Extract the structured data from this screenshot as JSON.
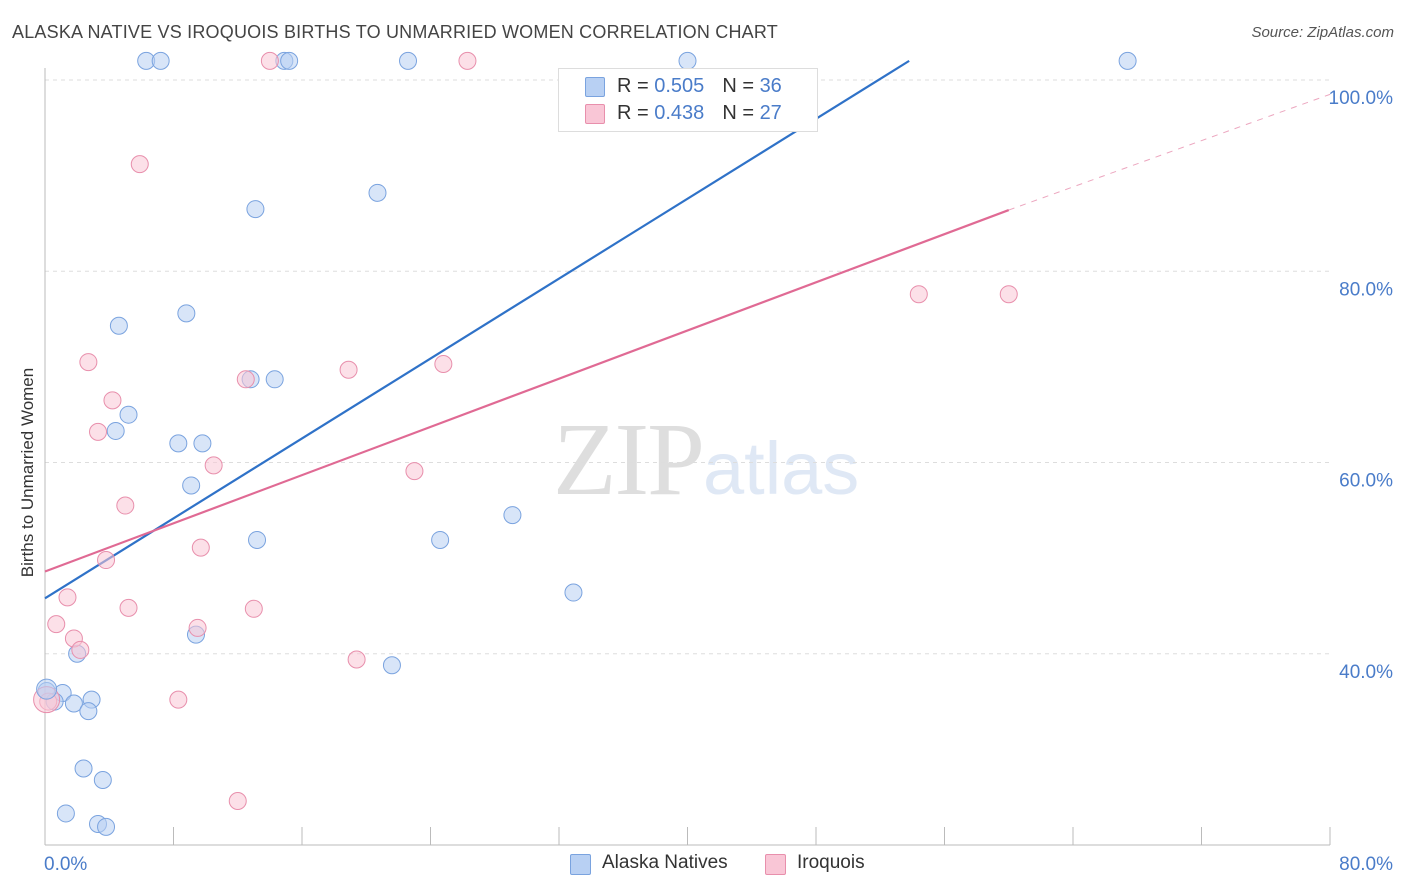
{
  "title": "ALASKA NATIVE VS IROQUOIS BIRTHS TO UNMARRIED WOMEN CORRELATION CHART",
  "source": "Source: ZipAtlas.com",
  "watermark": {
    "zip": "ZIP",
    "atlas": "atlas"
  },
  "legend_top": [
    {
      "r_label": "R = ",
      "r_value": "0.505",
      "n_label": "N = ",
      "n_value": "36",
      "color": "#b8d0f3",
      "border": "#7aa3df"
    },
    {
      "r_label": "R = ",
      "r_value": "0.438",
      "n_label": "N = ",
      "n_value": "27",
      "color": "#f9c6d6",
      "border": "#e88fac"
    }
  ],
  "legend_bottom": [
    {
      "label": "Alaska Natives",
      "color": "#b8d0f3",
      "border": "#7aa3df"
    },
    {
      "label": "Iroquois",
      "color": "#f9c6d6",
      "border": "#e88fac"
    }
  ],
  "chart_data": {
    "type": "scatter",
    "title": "ALASKA NATIVE VS IROQUOIS BIRTHS TO UNMARRIED WOMEN CORRELATION CHART",
    "xlabel": "",
    "ylabel": "Births to Unmarried Women",
    "xlim": [
      0,
      80
    ],
    "ylim": [
      20,
      100
    ],
    "x_tick_labels": [
      "0.0%",
      "80.0%"
    ],
    "y_tick_labels": [
      "40.0%",
      "60.0%",
      "80.0%",
      "100.0%"
    ],
    "y_ticks": [
      40,
      60,
      80,
      100
    ],
    "grid": true,
    "legend": "top-center",
    "series": [
      {
        "name": "Alaska Natives",
        "color": "#7aa3df",
        "fill": "#b8d0f3",
        "line_color": "#2f72c8",
        "trend": {
          "x0": 0,
          "y0": 45.8,
          "x1": 53.8,
          "y1": 102
        },
        "points": [
          [
            6.3,
            102
          ],
          [
            7.2,
            102
          ],
          [
            14.9,
            102
          ],
          [
            15.2,
            102
          ],
          [
            22.6,
            102
          ],
          [
            67.4,
            102
          ],
          [
            20.7,
            88.2
          ],
          [
            13.1,
            86.5
          ],
          [
            4.6,
            74.3
          ],
          [
            8.8,
            75.6
          ],
          [
            12.8,
            68.7
          ],
          [
            14.3,
            68.7
          ],
          [
            5.2,
            65.0
          ],
          [
            4.4,
            63.3
          ],
          [
            8.3,
            62.0
          ],
          [
            9.8,
            62.0
          ],
          [
            9.1,
            57.6
          ],
          [
            13.2,
            51.9
          ],
          [
            24.6,
            51.9
          ],
          [
            29.1,
            54.5
          ],
          [
            32.9,
            46.4
          ],
          [
            9.4,
            42.0
          ],
          [
            2.0,
            40.0
          ],
          [
            21.6,
            38.8
          ],
          [
            0.1,
            36.1
          ],
          [
            1.1,
            35.9
          ],
          [
            0.6,
            35.0
          ],
          [
            1.8,
            34.8
          ],
          [
            2.9,
            35.2
          ],
          [
            2.7,
            34.0
          ],
          [
            2.4,
            28.0
          ],
          [
            3.6,
            26.8
          ],
          [
            1.3,
            23.3
          ],
          [
            3.3,
            22.2
          ],
          [
            3.8,
            21.9
          ],
          [
            40.0,
            102
          ]
        ]
      },
      {
        "name": "Iroquois",
        "color": "#e88fac",
        "fill": "#f9c6d6",
        "line_color": "#e06a94",
        "trend": {
          "x0": 0,
          "y0": 48.6,
          "x1": 60,
          "y1": 86.4
        },
        "trend_dashed": {
          "x0": 60,
          "y0": 86.4,
          "x1": 80,
          "y1": 98.5
        },
        "points": [
          [
            14.0,
            102
          ],
          [
            26.3,
            102
          ],
          [
            5.9,
            91.2
          ],
          [
            54.4,
            77.6
          ],
          [
            60.0,
            77.6
          ],
          [
            2.7,
            70.5
          ],
          [
            18.9,
            69.7
          ],
          [
            24.8,
            70.3
          ],
          [
            12.5,
            68.7
          ],
          [
            4.2,
            66.5
          ],
          [
            3.3,
            63.2
          ],
          [
            10.5,
            59.7
          ],
          [
            23.0,
            59.1
          ],
          [
            5.0,
            55.5
          ],
          [
            9.7,
            51.1
          ],
          [
            3.8,
            49.8
          ],
          [
            1.4,
            45.9
          ],
          [
            5.2,
            44.8
          ],
          [
            13.0,
            44.7
          ],
          [
            0.7,
            43.1
          ],
          [
            9.5,
            42.7
          ],
          [
            1.8,
            41.6
          ],
          [
            2.2,
            40.4
          ],
          [
            19.4,
            39.4
          ],
          [
            8.3,
            35.2
          ],
          [
            0.2,
            35.0
          ],
          [
            12.0,
            24.6
          ]
        ]
      }
    ]
  }
}
